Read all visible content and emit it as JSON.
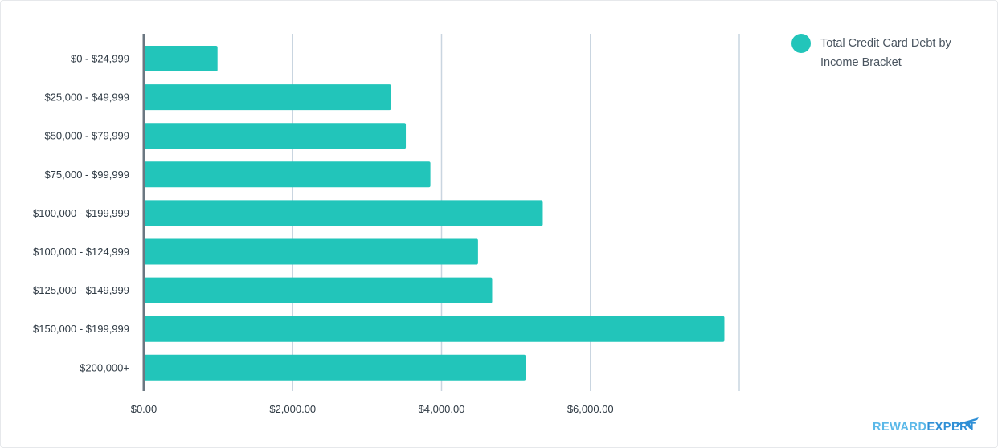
{
  "chart_data": {
    "type": "bar",
    "orientation": "horizontal",
    "categories": [
      "$0 - $24,999",
      "$25,000 - $49,999",
      "$50,000 - $79,999",
      "$75,000 - $99,999",
      "$100,000 - $199,999",
      "$100,000 - $124,999",
      "$125,000 - $149,999",
      "$150,000 - $199,999",
      "$200,000+"
    ],
    "series": [
      {
        "name": "Total Credit Card Debt by Income Bracket",
        "color": "#22c5ba",
        "values": [
          990,
          3320,
          3520,
          3850,
          5360,
          4490,
          4680,
          7800,
          5130
        ]
      }
    ],
    "xlim": [
      0,
      8000
    ],
    "x_ticks": [
      0,
      2000,
      4000,
      6000,
      8000
    ],
    "x_tick_labels": [
      "$0.00",
      "$2,000.00",
      "$4,000.00",
      "$6,000.00",
      ""
    ],
    "grid": "vertical",
    "grid_color": "#c9d5e0",
    "axis_color": "#6b7781",
    "legend_position": "top-right"
  },
  "legend": {
    "label": "Total Credit Card Debt by Income Bracket",
    "color": "#22c5ba"
  },
  "branding": {
    "logo_text_primary": "REWARD",
    "logo_text_secondary": "EXPERT",
    "logo_color_primary": "#5ab8e8",
    "logo_color_secondary": "#2e8fd6",
    "logo_icon": "airplane-icon"
  }
}
